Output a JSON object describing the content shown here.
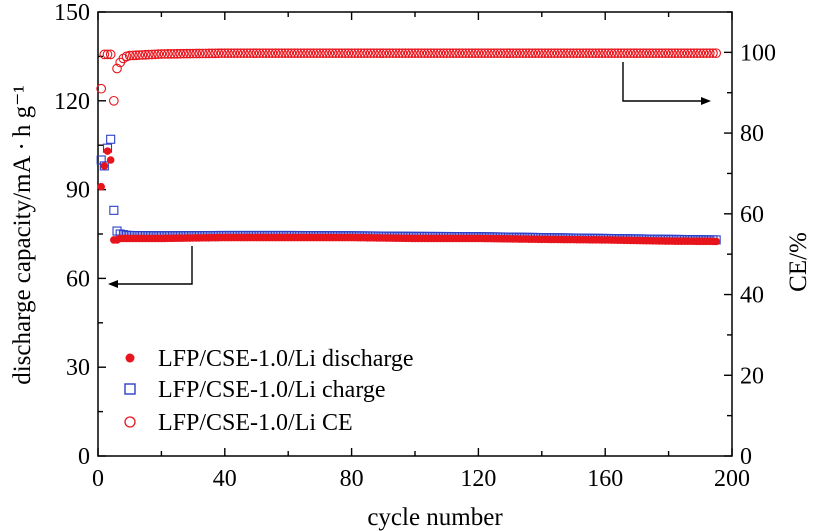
{
  "chart_data": {
    "type": "scatter",
    "xlabel": "cycle number",
    "ylabel_left": "discharge capacity/mA · h g⁻¹",
    "ylabel_right": "CE/%",
    "xlim": [
      0,
      200
    ],
    "ylim_left": [
      0,
      150
    ],
    "ylim_right": [
      0,
      110
    ],
    "x_ticks": [
      0,
      40,
      80,
      120,
      160,
      200
    ],
    "y_left_ticks": [
      0,
      30,
      60,
      90,
      120,
      150
    ],
    "y_right_ticks": [
      0,
      20,
      40,
      60,
      80,
      100
    ],
    "grid": false,
    "legend_position": "bottom-left",
    "colors": {
      "discharge": "#e8141c",
      "charge": "#2b3fc8",
      "ce": "#e8141c"
    },
    "series": [
      {
        "name": "LFP/CSE-1.0/Li discharge",
        "axis": "left",
        "marker": "filled-circle",
        "x": [
          1,
          2,
          3,
          4,
          5,
          6,
          7,
          8,
          9,
          10,
          20,
          40,
          60,
          80,
          100,
          120,
          140,
          160,
          180,
          195
        ],
        "y": [
          91,
          98,
          103,
          100,
          73,
          73,
          73.5,
          73.5,
          73.5,
          73.5,
          73.5,
          73.8,
          73.8,
          73.8,
          73.5,
          73.5,
          73.2,
          73,
          72.6,
          72.5
        ]
      },
      {
        "name": "LFP/CSE-1.0/Li charge",
        "axis": "left",
        "marker": "open-square",
        "x": [
          1,
          2,
          3,
          4,
          5,
          6,
          7,
          8,
          9,
          10,
          20,
          40,
          60,
          80,
          100,
          120,
          140,
          160,
          180,
          195
        ],
        "y": [
          100,
          98,
          104,
          107,
          83,
          76,
          75,
          74.8,
          74.6,
          74.5,
          74.4,
          74.5,
          74.5,
          74.4,
          74.2,
          74.1,
          73.8,
          73.5,
          73.2,
          73
        ]
      },
      {
        "name": "LFP/CSE-1.0/Li CE",
        "axis": "right",
        "marker": "open-circle",
        "x": [
          1,
          2,
          3,
          4,
          5,
          6,
          7,
          8,
          9,
          10,
          20,
          40,
          60,
          80,
          100,
          120,
          140,
          160,
          180,
          195
        ],
        "y": [
          91,
          99.5,
          99.5,
          99.5,
          88,
          96,
          97.5,
          98.5,
          99,
          99.2,
          99.6,
          99.8,
          99.8,
          99.8,
          99.8,
          99.8,
          99.8,
          99.8,
          99.8,
          99.8
        ]
      }
    ],
    "legend": [
      "LFP/CSE-1.0/Li discharge",
      "LFP/CSE-1.0/Li charge",
      "LFP/CSE-1.0/Li CE"
    ]
  }
}
